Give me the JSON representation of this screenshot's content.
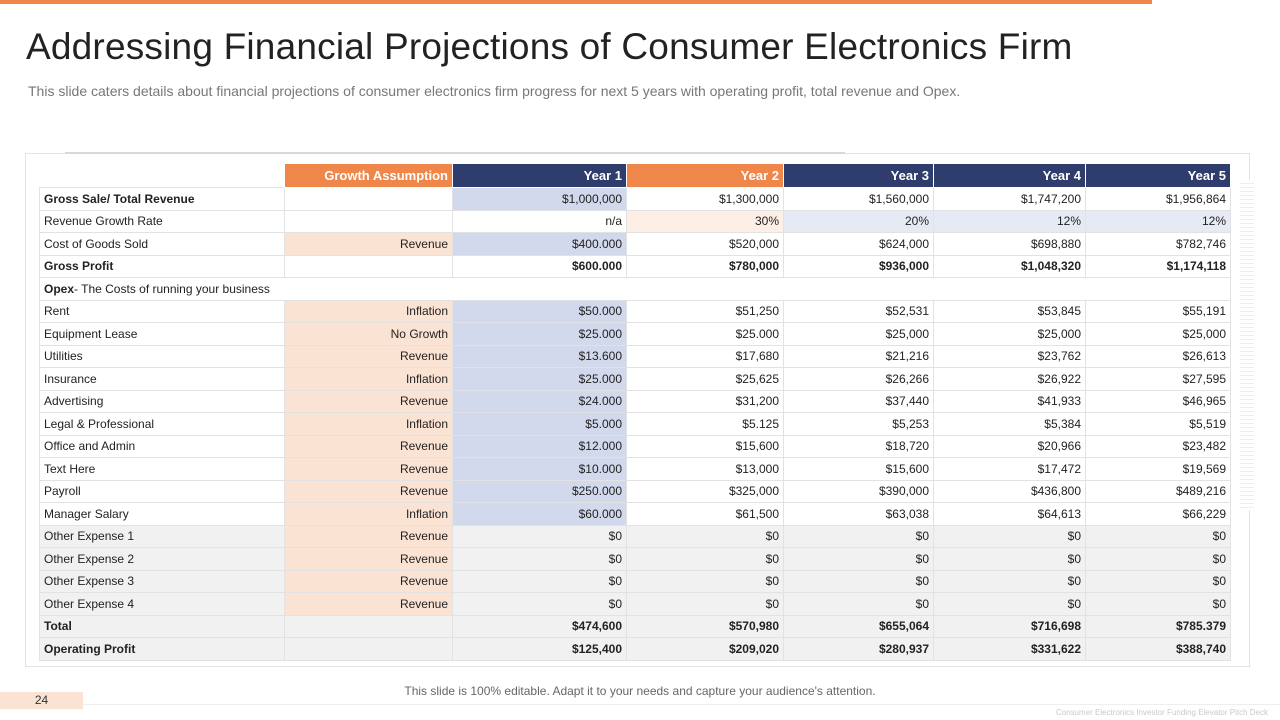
{
  "title": "Addressing Financial Projections of Consumer Electronics Firm",
  "subtitle": "This slide caters details about financial projections of consumer electronics firm progress for next 5 years with operating profit, total revenue and Opex.",
  "table": {
    "headers": {
      "growth": "Growth Assumption",
      "y1": "Year 1",
      "y2": "Year 2",
      "y3": "Year 3",
      "y4": "Year 4",
      "y5": "Year 5"
    },
    "rows": [
      {
        "label": "Gross Sale/ Total Revenue",
        "asm": "",
        "v": [
          "$1,000,000",
          "$1,300,000",
          "$1,560,000",
          "$1,747,200",
          "$1,956,864"
        ]
      },
      {
        "label": "Revenue Growth Rate",
        "asm": "",
        "v": [
          "n/a",
          "30%",
          "20%",
          "12%",
          "12%"
        ]
      },
      {
        "label": "Cost of Goods Sold",
        "asm": "Revenue",
        "v": [
          "$400.000",
          "$520,000",
          "$624,000",
          "$698,880",
          "$782,746"
        ]
      },
      {
        "label": "Gross Profit",
        "asm": "",
        "v": [
          "$600.000",
          "$780,000",
          "$936,000",
          "$1,048,320",
          "$1,174,118"
        ]
      },
      {
        "opex_bold": "Opex",
        "opex_rest": "- The Costs of running your business"
      },
      {
        "label": "Rent",
        "asm": "Inflation",
        "v": [
          "$50.000",
          "$51,250",
          "$52,531",
          "$53,845",
          "$55,191"
        ]
      },
      {
        "label": "Equipment Lease",
        "asm": "No Growth",
        "v": [
          "$25.000",
          "$25.000",
          "$25,000",
          "$25,000",
          "$25,000"
        ]
      },
      {
        "label": "Utilities",
        "asm": "Revenue",
        "v": [
          "$13.600",
          "$17,680",
          "$21,216",
          "$23,762",
          "$26,613"
        ]
      },
      {
        "label": "Insurance",
        "asm": "Inflation",
        "v": [
          "$25.000",
          "$25,625",
          "$26,266",
          "$26,922",
          "$27,595"
        ]
      },
      {
        "label": "Advertising",
        "asm": "Revenue",
        "v": [
          "$24.000",
          "$31,200",
          "$37,440",
          "$41,933",
          "$46,965"
        ]
      },
      {
        "label": "Legal & Professional",
        "asm": "Inflation",
        "v": [
          "$5.000",
          "$5.125",
          "$5,253",
          "$5,384",
          "$5,519"
        ]
      },
      {
        "label": "Office and Admin",
        "asm": "Revenue",
        "v": [
          "$12.000",
          "$15,600",
          "$18,720",
          "$20,966",
          "$23,482"
        ]
      },
      {
        "label": "Text Here",
        "asm": "Revenue",
        "v": [
          "$10.000",
          "$13,000",
          "$15,600",
          "$17,472",
          "$19,569"
        ]
      },
      {
        "label": "Payroll",
        "asm": "Revenue",
        "v": [
          "$250.000",
          "$325,000",
          "$390,000",
          "$436,800",
          "$489,216"
        ]
      },
      {
        "label": "Manager Salary",
        "asm": "Inflation",
        "v": [
          "$60.000",
          "$61,500",
          "$63,038",
          "$64,613",
          "$66,229"
        ]
      },
      {
        "label": "Other Expense 1",
        "asm": "Revenue",
        "v": [
          "$0",
          "$0",
          "$0",
          "$0",
          "$0"
        ]
      },
      {
        "label": "Other Expense 2",
        "asm": "Revenue",
        "v": [
          "$0",
          "$0",
          "$0",
          "$0",
          "$0"
        ]
      },
      {
        "label": "Other Expense 3",
        "asm": "Revenue",
        "v": [
          "$0",
          "$0",
          "$0",
          "$0",
          "$0"
        ]
      },
      {
        "label": "Other Expense 4",
        "asm": "Revenue",
        "v": [
          "$0",
          "$0",
          "$0",
          "$0",
          "$0"
        ]
      },
      {
        "label": "Total",
        "asm": "",
        "v": [
          "$474,600",
          "$570,980",
          "$655,064",
          "$716,698",
          "$785.379"
        ]
      },
      {
        "label": "Operating Profit",
        "asm": "",
        "v": [
          "$125,400",
          "$209,020",
          "$280,937",
          "$331,622",
          "$388,740"
        ]
      }
    ]
  },
  "footer": {
    "note": "This slide is 100% editable. Adapt it to your needs and capture your audience's attention.",
    "page_number": "24",
    "deck_name": "Consumer Electronics Investor Funding Elevator Pitch Deck"
  },
  "colors": {
    "accent_orange": "#f0874a",
    "header_navy": "#2e3d6b",
    "assumption_shade": "#fbe3d4",
    "year1_shade": "#d2d9ec"
  }
}
